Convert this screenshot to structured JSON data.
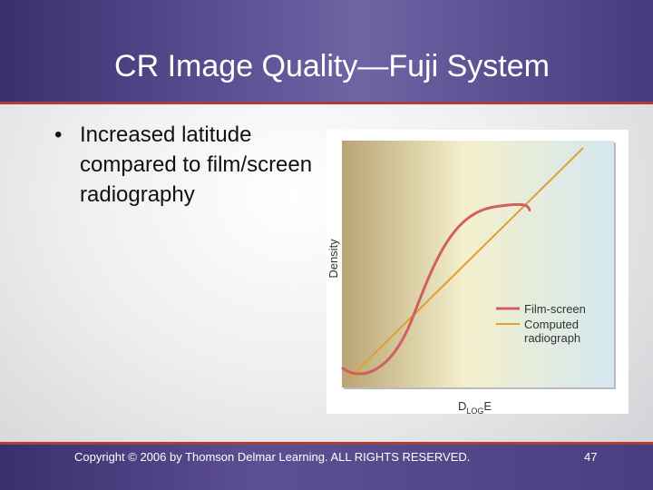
{
  "title": "CR Image Quality—Fuji System",
  "bullets": [
    "Increased latitude compared to film/screen radiography"
  ],
  "figure": {
    "y_label": "Density",
    "x_label": {
      "main": "D",
      "sub": "LOG",
      "tail": "E"
    },
    "legend": [
      "Film-screen",
      "Computed radiograph"
    ]
  },
  "footer": {
    "copyright": "Copyright © 2006 by Thomson Delmar Learning. ALL RIGHTS RESERVED.",
    "page": "47"
  }
}
